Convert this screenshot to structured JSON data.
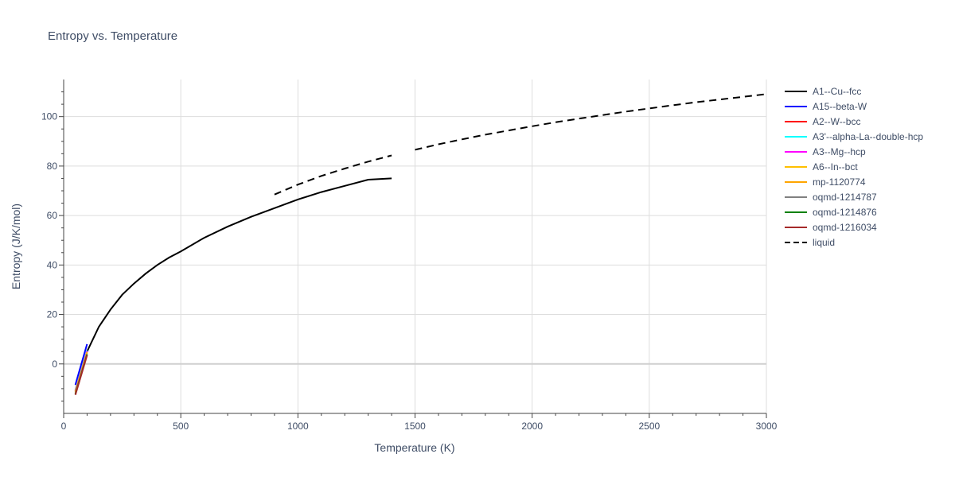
{
  "chart_data": {
    "type": "line",
    "title": "Entropy vs. Temperature",
    "xlabel": "Temperature (K)",
    "ylabel": "Entropy (J/K/mol)",
    "xlim": [
      0,
      3000
    ],
    "ylim": [
      -20,
      115
    ],
    "x_ticks": [
      0,
      500,
      1000,
      1500,
      2000,
      2500,
      3000
    ],
    "y_ticks": [
      0,
      20,
      40,
      60,
      80,
      100
    ],
    "grid": true,
    "legend_position": "right",
    "series": [
      {
        "name": "A1--Cu--fcc",
        "color": "#000000",
        "dash": "solid",
        "x": [
          100,
          150,
          200,
          250,
          300,
          350,
          400,
          450,
          500,
          600,
          700,
          800,
          900,
          1000,
          1100,
          1200,
          1300,
          1400
        ],
        "y": [
          5,
          15,
          22,
          28,
          32.5,
          36.5,
          40,
          43,
          45.5,
          51,
          55.5,
          59.5,
          63,
          66.5,
          69.5,
          72,
          74.5,
          75
        ]
      },
      {
        "name": "A15--beta-W",
        "color": "#0000ff",
        "dash": "solid",
        "x": [
          50,
          100
        ],
        "y": [
          -8.5,
          8
        ]
      },
      {
        "name": "A2--W--bcc",
        "color": "#ff0000",
        "dash": "solid",
        "x": [
          50,
          100
        ],
        "y": [
          -11,
          5
        ]
      },
      {
        "name": "A3'--alpha-La--double-hcp",
        "color": "#00ffff",
        "dash": "solid",
        "x": [
          50,
          100
        ],
        "y": [
          -10.5,
          5.5
        ]
      },
      {
        "name": "A3--Mg--hcp",
        "color": "#ff00ff",
        "dash": "solid",
        "x": [
          50,
          100
        ],
        "y": [
          -10.8,
          5.2
        ]
      },
      {
        "name": "A6--In--bct",
        "color": "#ffc000",
        "dash": "solid",
        "x": [
          50,
          100
        ],
        "y": [
          -11.2,
          4.8
        ]
      },
      {
        "name": "mp-1120774",
        "color": "#ffa500",
        "dash": "solid",
        "x": [
          50,
          100
        ],
        "y": [
          -11.5,
          4.5
        ]
      },
      {
        "name": "oqmd-1214787",
        "color": "#808080",
        "dash": "solid",
        "x": [
          50,
          100
        ],
        "y": [
          -12,
          4
        ]
      },
      {
        "name": "oqmd-1214876",
        "color": "#008000",
        "dash": "solid",
        "x": [
          50,
          100
        ],
        "y": [
          -12.3,
          3.8
        ]
      },
      {
        "name": "oqmd-1216034",
        "color": "#a52a2a",
        "dash": "solid",
        "x": [
          50,
          100
        ],
        "y": [
          -12.5,
          3.5
        ]
      },
      {
        "name": "liquid",
        "color": "#000000",
        "dash": "dash",
        "x": [
          900,
          1000,
          1100,
          1200,
          1300,
          1400,
          1500,
          1600,
          1700,
          1800,
          1900,
          2000,
          2100,
          2200,
          2300,
          2400,
          2500,
          2600,
          2700,
          2800,
          2900,
          3000
        ],
        "y": [
          68.5,
          72.5,
          76,
          79,
          81.8,
          84.3,
          86.6,
          88.8,
          90.8,
          92.7,
          94.4,
          96.1,
          97.7,
          99.2,
          100.6,
          102,
          103.3,
          104.6,
          105.8,
          106.9,
          108,
          109.1
        ],
        "gaps": [
          [
            1400,
            1500
          ]
        ]
      }
    ]
  }
}
